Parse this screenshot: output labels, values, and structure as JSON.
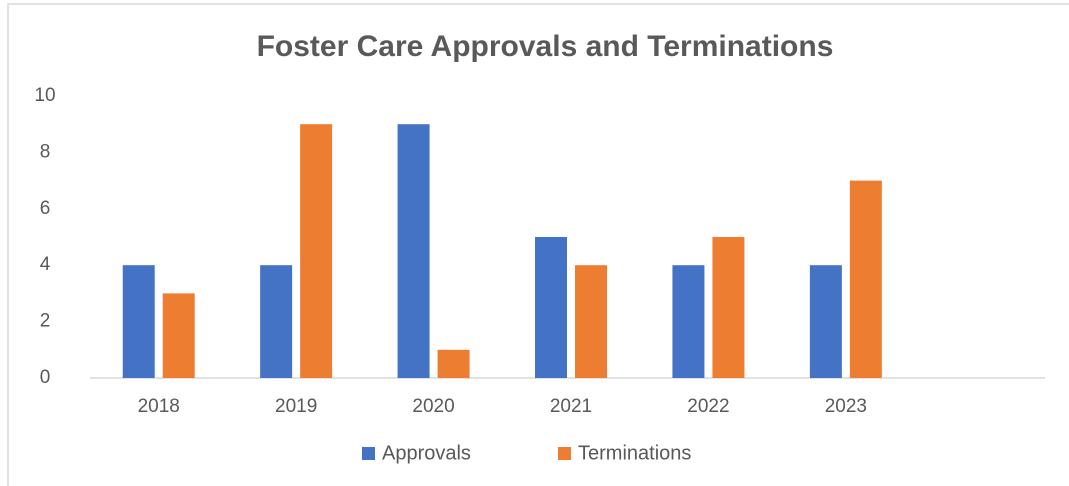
{
  "chart_data": {
    "type": "bar",
    "title": "Foster Care Approvals and Terminations",
    "categories": [
      "2018",
      "2019",
      "2020",
      "2021",
      "2022",
      "2023",
      null
    ],
    "series": [
      {
        "name": "Approvals",
        "color": "#4472c4",
        "values": [
          4,
          4,
          9,
          5,
          4,
          4,
          null
        ]
      },
      {
        "name": "Terminations",
        "color": "#ed7d31",
        "values": [
          3,
          9,
          1,
          4,
          5,
          7,
          null
        ]
      }
    ],
    "ylim": [
      0,
      10
    ],
    "yticks": [
      0,
      2,
      4,
      6,
      8,
      10
    ],
    "grid": false,
    "legend": "bottom"
  }
}
